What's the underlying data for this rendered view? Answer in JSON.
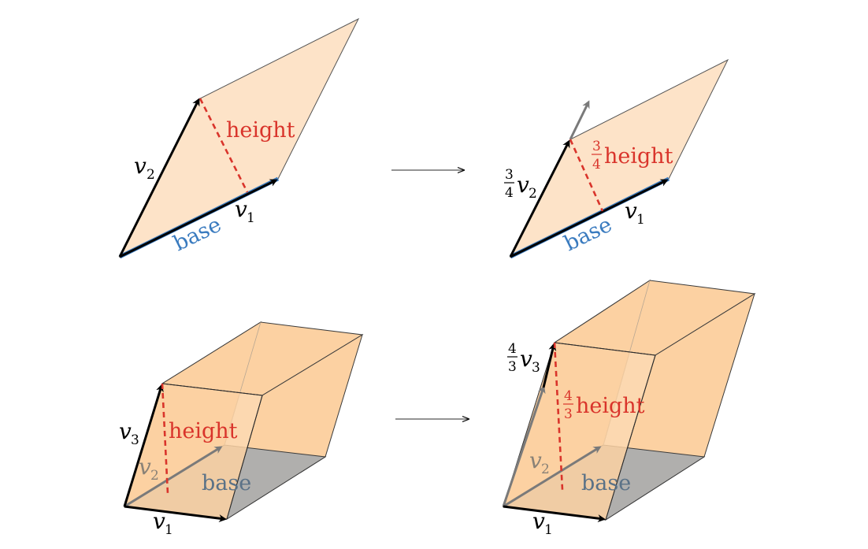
{
  "top_left": {
    "v2_label": "v",
    "v2_sub": "2",
    "v1_label": "v",
    "v1_sub": "1",
    "height_label": "height",
    "base_label": "base"
  },
  "top_right": {
    "v2_coef_num": "3",
    "v2_coef_den": "4",
    "v2_label": "v",
    "v2_sub": "2",
    "v1_label": "v",
    "v1_sub": "1",
    "height_coef_num": "3",
    "height_coef_den": "4",
    "height_label": "height",
    "base_label": "base"
  },
  "bottom_left": {
    "v3_label": "v",
    "v3_sub": "3",
    "v2_label": "v",
    "v2_sub": "2",
    "v1_label": "v",
    "v1_sub": "1",
    "height_label": "height",
    "base_label": "base"
  },
  "bottom_right": {
    "v3_coef_num": "4",
    "v3_coef_den": "3",
    "v3_label": "v",
    "v3_sub": "3",
    "v2_label": "v",
    "v2_sub": "2",
    "v1_label": "v",
    "v1_sub": "1",
    "height_coef_num": "4",
    "height_coef_den": "3",
    "height_label": "height",
    "base_label": "base"
  },
  "colors": {
    "face_2d": "#fde3c8",
    "face_3d": "#fcd1a2",
    "base_face": "#b0afad",
    "height": "#d9342b",
    "base_2d": "#3a7bbf",
    "base_3d_text": "#5b7287",
    "scaled_vector": "#7a7a7a"
  }
}
